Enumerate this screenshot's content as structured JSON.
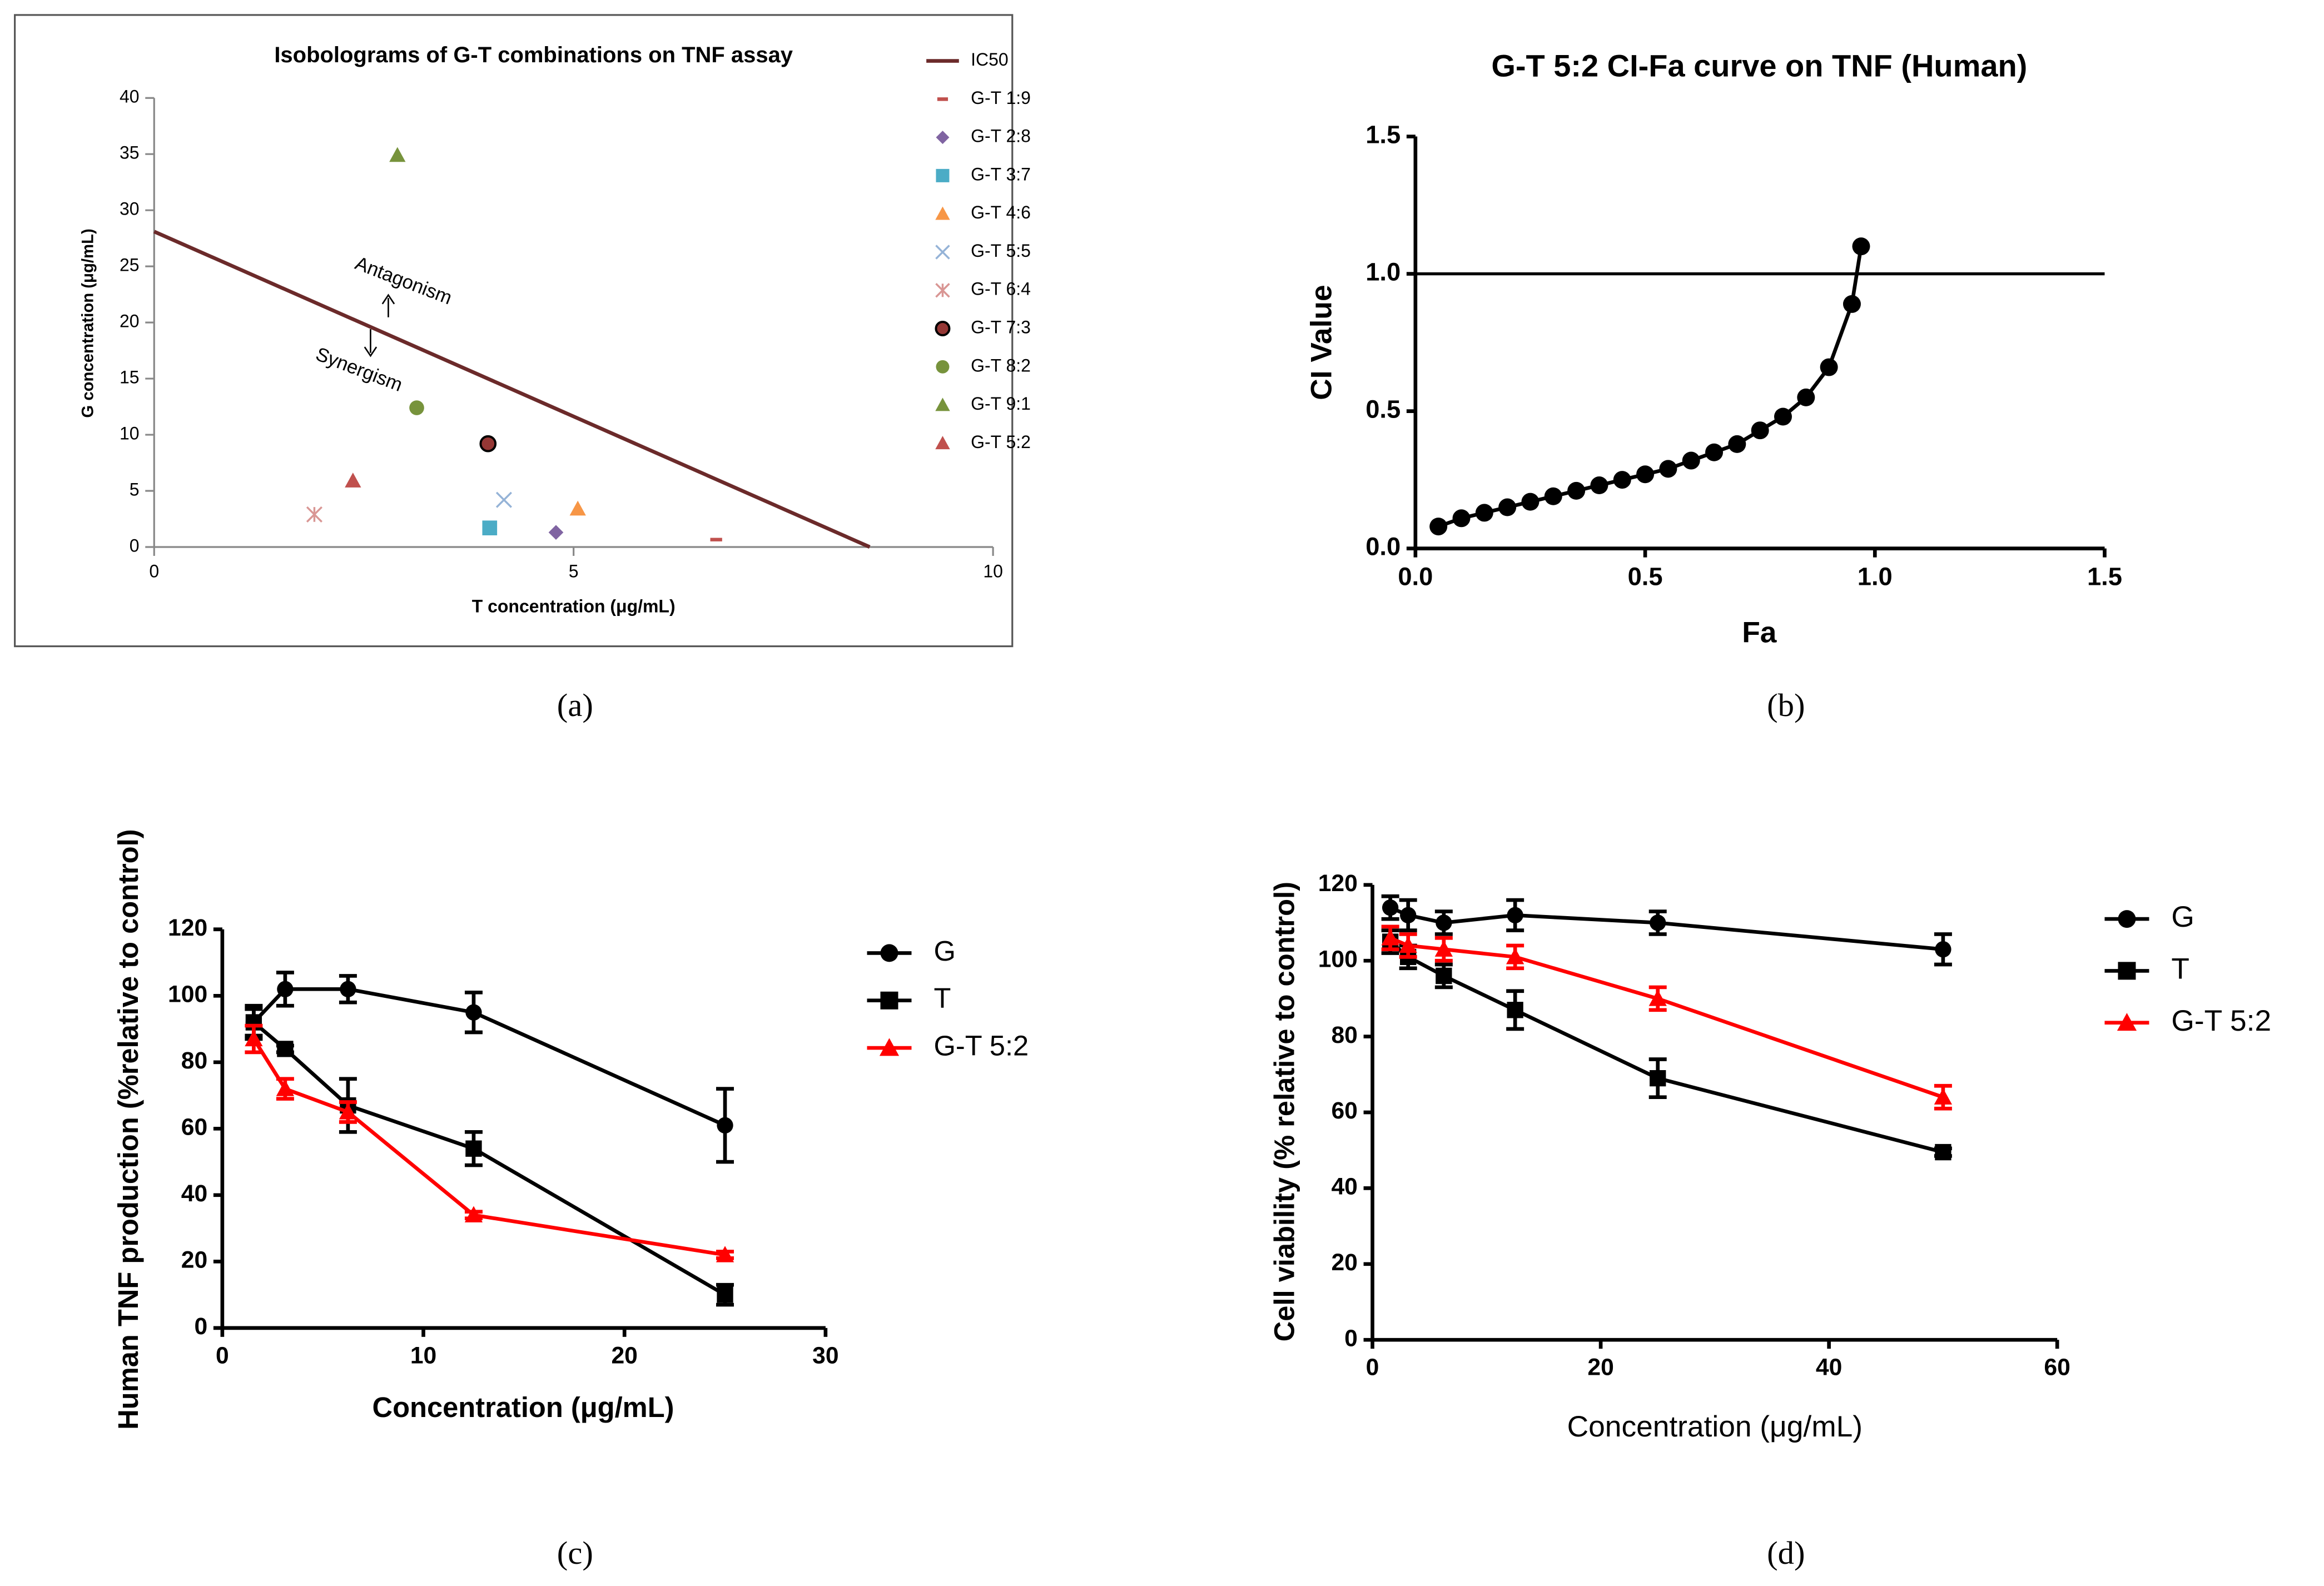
{
  "chart_data": [
    {
      "type": "scatter",
      "title": "Isobolograms of G-T combinations on TNF assay",
      "x_label": "T concentration (μg/mL)",
      "y_label": "G concentration (μg/mL)",
      "caption": "(a)",
      "annotations": [
        "Antagonism",
        "Synergism"
      ],
      "xlim": [
        0,
        10
      ],
      "xticks": [
        0,
        5,
        10
      ],
      "ylim": [
        0,
        40
      ],
      "yticks": [
        0,
        5,
        10,
        15,
        20,
        25,
        30,
        35,
        40
      ],
      "series": [
        {
          "name": "IC50",
          "color": "#6b2a2a",
          "marker": "line",
          "x": [
            0,
            8.53
          ],
          "values": [
            28.1,
            0
          ]
        },
        {
          "name": "G-T 1:9",
          "color": "#c0504d",
          "marker": "dash",
          "x": [
            6.7
          ],
          "values": [
            0.66
          ]
        },
        {
          "name": "G-T 2:8",
          "color": "#8064a2",
          "marker": "diamond",
          "x": [
            4.79
          ],
          "values": [
            1.3
          ]
        },
        {
          "name": "G-T 3:7",
          "color": "#4bacc6",
          "marker": "square",
          "x": [
            4.0
          ],
          "values": [
            1.7
          ]
        },
        {
          "name": "G-T 4:6",
          "color": "#f79646",
          "marker": "triangle",
          "x": [
            5.05
          ],
          "values": [
            3.4
          ]
        },
        {
          "name": "G-T 5:5",
          "color": "#95b3d7",
          "marker": "x",
          "x": [
            4.17
          ],
          "values": [
            4.2
          ]
        },
        {
          "name": "G-T 6:4",
          "color": "#d99694",
          "marker": "asterisk",
          "x": [
            1.91
          ],
          "values": [
            2.9
          ]
        },
        {
          "name": "G-T 7:3",
          "color": "#953735",
          "marker": "circle-outlined",
          "x": [
            3.98
          ],
          "values": [
            9.2
          ]
        },
        {
          "name": "G-T 8:2",
          "color": "#77933c",
          "marker": "circle",
          "x": [
            3.13
          ],
          "values": [
            12.4
          ]
        },
        {
          "name": "G-T 9:1",
          "color": "#77933c",
          "marker": "triangle",
          "x": [
            2.9
          ],
          "values": [
            34.9
          ]
        },
        {
          "name": "G-T 5:2",
          "color": "#c0504d",
          "marker": "triangle",
          "x": [
            2.37
          ],
          "values": [
            5.9
          ]
        }
      ]
    },
    {
      "type": "line",
      "title": "G-T 5:2 CI-Fa curve on TNF (Human)",
      "x_label": "Fa",
      "y_label": "CI Value",
      "caption": "(b)",
      "color": "#000000",
      "reference_line": 1,
      "xlim": [
        0,
        1.5
      ],
      "xticks": [
        {
          "value": 0,
          "label": "0.0"
        },
        0.5,
        {
          "value": 1,
          "label": "1.0"
        },
        1.5
      ],
      "ylim": [
        0,
        1.5
      ],
      "yticks": [
        {
          "value": 0,
          "label": "0.0"
        },
        0.5,
        {
          "value": 1,
          "label": "1.0"
        },
        1.5
      ],
      "x": [
        0.05,
        0.1,
        0.15,
        0.2,
        0.25,
        0.3,
        0.35,
        0.4,
        0.45,
        0.5,
        0.55,
        0.6,
        0.65,
        0.7,
        0.75,
        0.8,
        0.85,
        0.9,
        0.95,
        0.97
      ],
      "values": [
        0.08,
        0.11,
        0.13,
        0.15,
        0.17,
        0.19,
        0.21,
        0.23,
        0.25,
        0.27,
        0.29,
        0.32,
        0.35,
        0.38,
        0.43,
        0.48,
        0.55,
        0.66,
        0.89,
        1.1
      ]
    },
    {
      "type": "line",
      "x_label": "Concentration (μg/mL)",
      "y_label": "Human TNF production (%relative to control)",
      "caption": "(c)",
      "xlim": [
        0,
        30
      ],
      "xticks": [
        0,
        10,
        20,
        30
      ],
      "ylim": [
        0,
        120
      ],
      "yticks": [
        0,
        20,
        40,
        60,
        80,
        100,
        120
      ],
      "x": [
        1.5625,
        3.125,
        6.25,
        12.5,
        25
      ],
      "series": [
        {
          "name": "G",
          "color": "#000000",
          "marker": "circle",
          "values": [
            92,
            102,
            102,
            95,
            61
          ],
          "errors": [
            4,
            5,
            4,
            6,
            11
          ]
        },
        {
          "name": "T",
          "color": "#000000",
          "marker": "square",
          "values": [
            92,
            84,
            67,
            54,
            10
          ],
          "errors": [
            5,
            1,
            8,
            5,
            3
          ]
        },
        {
          "name": "G-T 5:2",
          "color": "#ff0000",
          "marker": "triangle",
          "values": [
            87,
            72,
            65,
            34,
            22
          ],
          "errors": [
            4,
            3,
            3,
            1,
            1
          ]
        }
      ]
    },
    {
      "type": "line",
      "x_label": "Concentration (μg/mL)",
      "y_label": "Cell viability (% relative to control)",
      "caption": "(d)",
      "xlim": [
        0,
        60
      ],
      "xticks": [
        0,
        20,
        40,
        60
      ],
      "ylim": [
        0,
        120
      ],
      "yticks": [
        0,
        20,
        40,
        60,
        80,
        100,
        120
      ],
      "x": [
        1.5625,
        3.125,
        6.25,
        12.5,
        25,
        50
      ],
      "series": [
        {
          "name": "G",
          "color": "#000000",
          "marker": "circle",
          "values": [
            114,
            112,
            110,
            112,
            110,
            103
          ],
          "errors": [
            3,
            4,
            3,
            4,
            3,
            4
          ]
        },
        {
          "name": "T",
          "color": "#000000",
          "marker": "square",
          "values": [
            105,
            101,
            96,
            87,
            69,
            49.5
          ],
          "errors": [
            3,
            3,
            3,
            5,
            5,
            1
          ]
        },
        {
          "name": "G-T 5:2",
          "color": "#ff0000",
          "marker": "triangle",
          "values": [
            106,
            104,
            103,
            101,
            90,
            64
          ],
          "errors": [
            3,
            3,
            3,
            3,
            3,
            3
          ]
        }
      ]
    }
  ]
}
